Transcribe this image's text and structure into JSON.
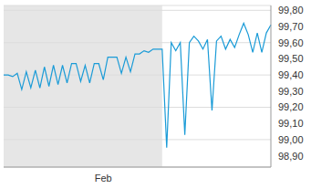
{
  "chart_data": {
    "type": "line",
    "categories": [
      null,
      null,
      null,
      null,
      null,
      null,
      null,
      null,
      null,
      null,
      null,
      null,
      null,
      null,
      null,
      null,
      null,
      null,
      null,
      null,
      null,
      null,
      "Feb",
      null,
      null,
      null,
      null,
      null,
      null,
      null,
      null,
      null,
      null,
      null,
      null,
      null,
      null,
      null,
      null,
      null,
      null,
      null,
      null,
      null,
      null,
      null,
      null,
      null,
      null,
      null,
      null,
      null,
      null,
      null,
      null,
      null,
      null,
      null,
      null,
      null
    ],
    "values": [
      99.4,
      99.4,
      99.39,
      99.41,
      99.31,
      99.42,
      99.32,
      99.43,
      99.32,
      99.45,
      99.33,
      99.46,
      99.34,
      99.46,
      99.35,
      99.47,
      99.47,
      99.36,
      99.46,
      99.35,
      99.47,
      99.47,
      99.37,
      99.51,
      99.51,
      99.51,
      99.41,
      99.51,
      99.42,
      99.53,
      99.53,
      99.55,
      99.54,
      99.56,
      99.56,
      99.56,
      98.95,
      99.6,
      99.55,
      99.6,
      99.03,
      99.6,
      99.64,
      99.61,
      99.56,
      99.62,
      99.18,
      99.61,
      99.64,
      99.56,
      99.62,
      99.57,
      99.65,
      99.72,
      99.65,
      99.54,
      99.66,
      99.54,
      99.66,
      99.71
    ],
    "color": "#1a9bd7",
    "ylim": [
      98.83,
      99.83
    ],
    "yticks": [
      {
        "value": 98.9,
        "label": "98,90"
      },
      {
        "value": 99.0,
        "label": "99,00"
      },
      {
        "value": 99.1,
        "label": "99,10"
      },
      {
        "value": 99.2,
        "label": "99,20"
      },
      {
        "value": 99.3,
        "label": "99,30"
      },
      {
        "value": 99.4,
        "label": "99,40"
      },
      {
        "value": 99.5,
        "label": "99,50"
      },
      {
        "value": 99.6,
        "label": "99,60"
      },
      {
        "value": 99.7,
        "label": "99,70"
      },
      {
        "value": 99.8,
        "label": "99,80"
      }
    ],
    "grid": true,
    "shaded_range": [
      0,
      35
    ]
  }
}
